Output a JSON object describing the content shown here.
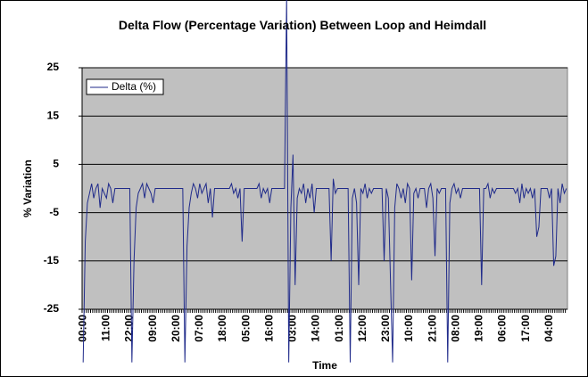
{
  "chart_data": {
    "type": "line",
    "title": "Delta Flow (Percentage Variation) Between Loop and Heimdall",
    "x_label": "Time",
    "y_label": "% Variation",
    "categories": [
      "00:00",
      null,
      null,
      null,
      null,
      null,
      null,
      null,
      null,
      null,
      null,
      "11:00",
      null,
      null,
      null,
      null,
      null,
      null,
      null,
      null,
      null,
      null,
      "22:00",
      null,
      null,
      null,
      null,
      null,
      null,
      null,
      null,
      null,
      null,
      "09:00",
      null,
      null,
      null,
      null,
      null,
      null,
      null,
      null,
      null,
      null,
      "20:00",
      null,
      null,
      null,
      null,
      null,
      null,
      null,
      null,
      null,
      null,
      "07:00",
      null,
      null,
      null,
      null,
      null,
      null,
      null,
      null,
      null,
      null,
      "18:00",
      null,
      null,
      null,
      null,
      null,
      null,
      null,
      null,
      null,
      null,
      "05:00",
      null,
      null,
      null,
      null,
      null,
      null,
      null,
      null,
      null,
      null,
      "16:00",
      null,
      null,
      null,
      null,
      null,
      null,
      null,
      null,
      null,
      null,
      "03:00",
      null,
      null,
      null,
      null,
      null,
      null,
      null,
      null,
      null,
      null,
      "14:00",
      null,
      null,
      null,
      null,
      null,
      null,
      null,
      null,
      null,
      null,
      "01:00",
      null,
      null,
      null,
      null,
      null,
      null,
      null,
      null,
      null,
      null,
      "12:00",
      null,
      null,
      null,
      null,
      null,
      null,
      null,
      null,
      null,
      null,
      "23:00",
      null,
      null,
      null,
      null,
      null,
      null,
      null,
      null,
      null,
      null,
      "10:00",
      null,
      null,
      null,
      null,
      null,
      null,
      null,
      null,
      null,
      null,
      "21:00",
      null,
      null,
      null,
      null,
      null,
      null,
      null,
      null,
      null,
      null,
      "08:00",
      null,
      null,
      null,
      null,
      null,
      null,
      null,
      null,
      null,
      null,
      "19:00",
      null,
      null,
      null,
      null,
      null,
      null,
      null,
      null,
      null,
      null,
      "06:00",
      null,
      null,
      null,
      null,
      null,
      null,
      null,
      null,
      null,
      null,
      "17:00",
      null,
      null,
      null,
      null,
      null,
      null,
      null,
      null,
      null,
      null,
      "04:00",
      null,
      null,
      null,
      null,
      null,
      null,
      null,
      null
    ],
    "series": [
      {
        "name": "Delta (%)",
        "color": "#1f2a8a",
        "values": [
          -36,
          -11,
          -3,
          -1,
          1,
          -2,
          0,
          1,
          -4,
          0,
          -1,
          -2,
          1,
          0,
          -3,
          0,
          0,
          0,
          0,
          0,
          0,
          0,
          0,
          -36,
          -15,
          -4,
          -1,
          0,
          1,
          -2,
          1,
          0,
          -1,
          -3,
          0,
          0,
          0,
          0,
          0,
          0,
          0,
          0,
          0,
          0,
          0,
          0,
          0,
          0,
          -36,
          -12,
          -4,
          -1,
          1,
          0,
          -2,
          1,
          -1,
          0,
          1,
          -3,
          0,
          -6,
          0,
          0,
          0,
          0,
          0,
          0,
          0,
          0,
          1,
          -1,
          0,
          -2,
          0,
          -11,
          0,
          0,
          0,
          0,
          0,
          0,
          0,
          1,
          -2,
          0,
          -1,
          0,
          -3,
          0,
          0,
          0,
          0,
          0,
          0,
          0,
          40,
          -36,
          -4,
          7,
          -20,
          -2,
          0,
          -1,
          1,
          -3,
          0,
          -2,
          1,
          -5,
          0,
          0,
          0,
          0,
          0,
          0,
          0,
          -15,
          2,
          -1,
          0,
          0,
          0,
          0,
          0,
          0,
          -36,
          -2,
          0,
          -3,
          -20,
          0,
          -1,
          1,
          -2,
          0,
          -1,
          0,
          0,
          0,
          0,
          0,
          -15,
          0,
          -2,
          -19,
          -36,
          -4,
          1,
          0,
          -2,
          0,
          -3,
          1,
          0,
          -19,
          -1,
          0,
          -2,
          0,
          0,
          0,
          -4,
          0,
          1,
          -2,
          -14,
          0,
          -1,
          0,
          0,
          0,
          -36,
          -3,
          0,
          1,
          -1,
          0,
          -2,
          0,
          0,
          0,
          0,
          0,
          0,
          0,
          0,
          0,
          -20,
          0,
          0,
          1,
          -2,
          0,
          -1,
          0,
          0,
          0,
          0,
          0,
          0,
          0,
          0,
          0,
          -1,
          0,
          -3,
          1,
          -2,
          0,
          -1,
          0,
          -2,
          0,
          -10,
          -8,
          0,
          0,
          0,
          0,
          -2,
          0,
          -16,
          -14,
          0,
          -3,
          1,
          -1,
          0
        ]
      }
    ],
    "ylim": [
      -25,
      25
    ],
    "yticks": [
      -25,
      -15,
      -5,
      5,
      15,
      25
    ],
    "grid": true,
    "legend": "upper left",
    "plot_background": "#c0c0c0"
  }
}
